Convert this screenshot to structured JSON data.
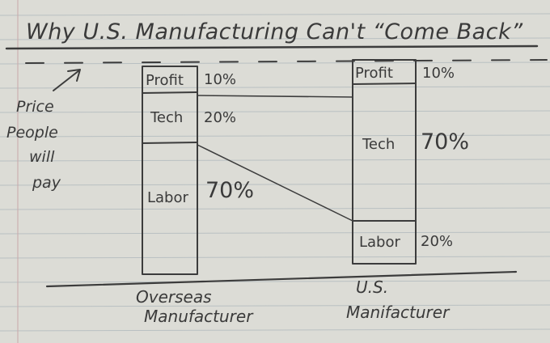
{
  "title": "Why U.S. Manufacturing Can't “Come Back”",
  "side_label": [
    "Price",
    "People",
    "will",
    "pay"
  ],
  "overseas": {
    "caption": [
      "Overseas",
      "Manufacturer"
    ],
    "segments": [
      {
        "label": "Profit",
        "pct": "10%"
      },
      {
        "label": "Tech",
        "pct": "20%"
      },
      {
        "label": "Labor",
        "pct": "70%"
      }
    ]
  },
  "us": {
    "caption": [
      "U.S.",
      "Manifacturer"
    ],
    "segments": [
      {
        "label": "Profit",
        "pct": "10%"
      },
      {
        "label": "Tech",
        "pct": "70%"
      },
      {
        "label": "Labor",
        "pct": "20%"
      }
    ]
  },
  "colors": {
    "paper": "#dcdcd6",
    "rule_line": "#b9c0c2",
    "margin_line": "#c9a9a9",
    "ink": "#3c3c3c"
  }
}
